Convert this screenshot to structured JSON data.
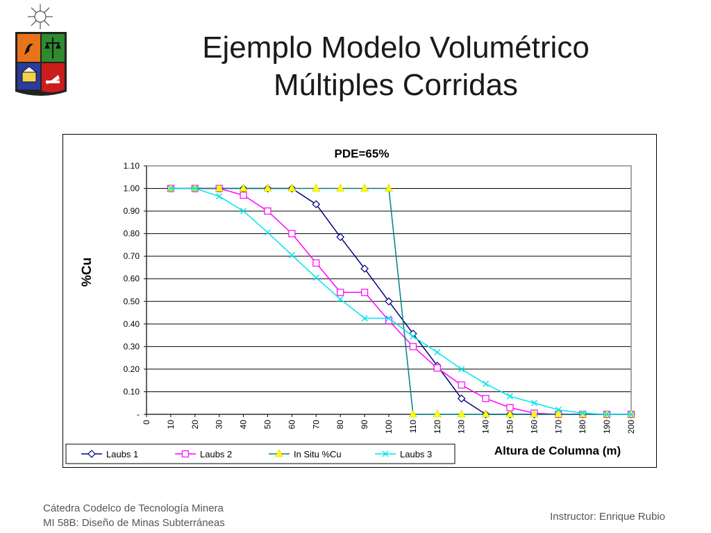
{
  "slide": {
    "title_line1": "Ejemplo Modelo Volumétrico",
    "title_line2": "Múltiples Corridas",
    "footer_line1": "Cátedra Codelco de Tecnología Minera",
    "footer_line2": "MI 58B: Diseño de Minas Subterráneas",
    "footer_right": "Instructor: Enrique Rubio",
    "logo_icon": "university-crest-icon"
  },
  "chart_data": {
    "type": "line",
    "title": "PDE=65%",
    "xlabel": "Altura de Columna (m)",
    "ylabel": "%Cu",
    "x": [
      0,
      10,
      20,
      30,
      40,
      50,
      60,
      70,
      80,
      90,
      100,
      110,
      120,
      130,
      140,
      150,
      160,
      170,
      180,
      190,
      200
    ],
    "x_tick_labels": [
      "0",
      "10",
      "20",
      "30",
      "40",
      "50",
      "60",
      "70",
      "80",
      "90",
      "100",
      "110",
      "120",
      "130",
      "140",
      "150",
      "160",
      "170",
      "180",
      "190",
      "200"
    ],
    "ylim": [
      0,
      1.1
    ],
    "y_ticks": [
      0,
      0.1,
      0.2,
      0.3,
      0.4,
      0.5,
      0.6,
      0.7,
      0.8,
      0.9,
      1.0,
      1.1
    ],
    "y_tick_labels": [
      "-",
      "0.10",
      "0.20",
      "0.30",
      "0.40",
      "0.50",
      "0.60",
      "0.70",
      "0.80",
      "0.90",
      "1.00",
      "1.10"
    ],
    "grid": "horizontal",
    "legend_position": "bottom-left",
    "series": [
      {
        "name": "Laubs 1",
        "color": "#000080",
        "marker": "diamond",
        "x": [
          10,
          20,
          30,
          40,
          50,
          60,
          70,
          80,
          90,
          100,
          110,
          120,
          130,
          140,
          150,
          160,
          170,
          180,
          190,
          200
        ],
        "values": [
          1.0,
          1.0,
          1.0,
          1.0,
          1.0,
          1.0,
          0.93,
          0.785,
          0.645,
          0.5,
          0.357,
          0.215,
          0.07,
          0.0,
          0.0,
          0.0,
          0.0,
          0.0,
          0.0,
          0.0
        ]
      },
      {
        "name": "Laubs 2",
        "color": "#ff00ff",
        "marker": "square",
        "x": [
          10,
          20,
          30,
          40,
          50,
          60,
          70,
          80,
          90,
          100,
          110,
          120,
          130,
          140,
          150,
          160,
          170,
          180,
          190,
          200
        ],
        "values": [
          1.0,
          1.0,
          1.0,
          0.97,
          0.9,
          0.8,
          0.67,
          0.54,
          0.54,
          0.415,
          0.3,
          0.205,
          0.13,
          0.07,
          0.03,
          0.005,
          0.0,
          0.0,
          0.0,
          0.0
        ]
      },
      {
        "name": "In Situ %Cu",
        "color": "#008080",
        "marker": "triangle",
        "marker_color": "#ffff00",
        "x": [
          10,
          20,
          30,
          40,
          50,
          60,
          70,
          80,
          90,
          100,
          110,
          120,
          130,
          140,
          150,
          160,
          170,
          180,
          190,
          200
        ],
        "values": [
          1.0,
          1.0,
          1.0,
          1.0,
          1.0,
          1.0,
          1.0,
          1.0,
          1.0,
          1.0,
          0.0,
          0.0,
          0.0,
          0.0,
          0.0,
          0.0,
          0.0,
          0.0,
          0.0,
          0.0
        ]
      },
      {
        "name": "Laubs 3",
        "color": "#00e5ee",
        "marker": "x",
        "x": [
          10,
          20,
          30,
          40,
          50,
          60,
          70,
          80,
          90,
          100,
          110,
          120,
          130,
          140,
          150,
          160,
          170,
          180,
          190,
          200
        ],
        "values": [
          1.0,
          1.0,
          0.965,
          0.9,
          0.805,
          0.705,
          0.605,
          0.51,
          0.425,
          0.425,
          0.345,
          0.275,
          0.2,
          0.135,
          0.08,
          0.05,
          0.02,
          0.005,
          0.0,
          0.0
        ]
      }
    ]
  }
}
